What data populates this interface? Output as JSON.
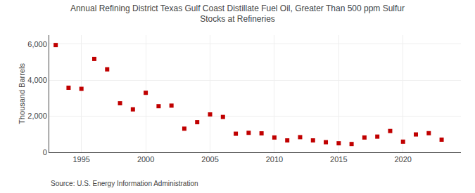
{
  "chart_data": {
    "type": "scatter",
    "title": "Annual Refining District Texas Gulf Coast Distillate Fuel Oil, Greater Than 500 ppm Sulfur\nStocks at Refineries",
    "ylabel": "Thousand Barrels",
    "source": "Source: U.S. Energy Information Administration",
    "x": [
      1993,
      1994,
      1995,
      1996,
      1997,
      1998,
      1999,
      2000,
      2001,
      2002,
      2003,
      2004,
      2005,
      2006,
      2007,
      2008,
      2009,
      2010,
      2011,
      2012,
      2013,
      2014,
      2015,
      2016,
      2017,
      2018,
      2019,
      2020,
      2021,
      2022,
      2023
    ],
    "values": [
      5950,
      3580,
      3520,
      5180,
      4600,
      2720,
      2380,
      3300,
      2560,
      2590,
      1310,
      1670,
      2100,
      1960,
      1030,
      1080,
      1050,
      820,
      660,
      840,
      660,
      560,
      500,
      460,
      820,
      870,
      1180,
      590,
      990,
      1060,
      700
    ],
    "color": "#c00000",
    "marker": "square",
    "xlim": [
      1992.5,
      2024.5
    ],
    "xticks": [
      1995,
      2000,
      2005,
      2010,
      2015,
      2020
    ],
    "ylim": [
      0,
      6500
    ],
    "yticks": [
      0,
      {
        "value": 2000,
        "label": "2,000"
      },
      {
        "value": 4000,
        "label": "4,000"
      },
      {
        "value": 6000,
        "label": "6,000"
      }
    ],
    "grid": true
  }
}
